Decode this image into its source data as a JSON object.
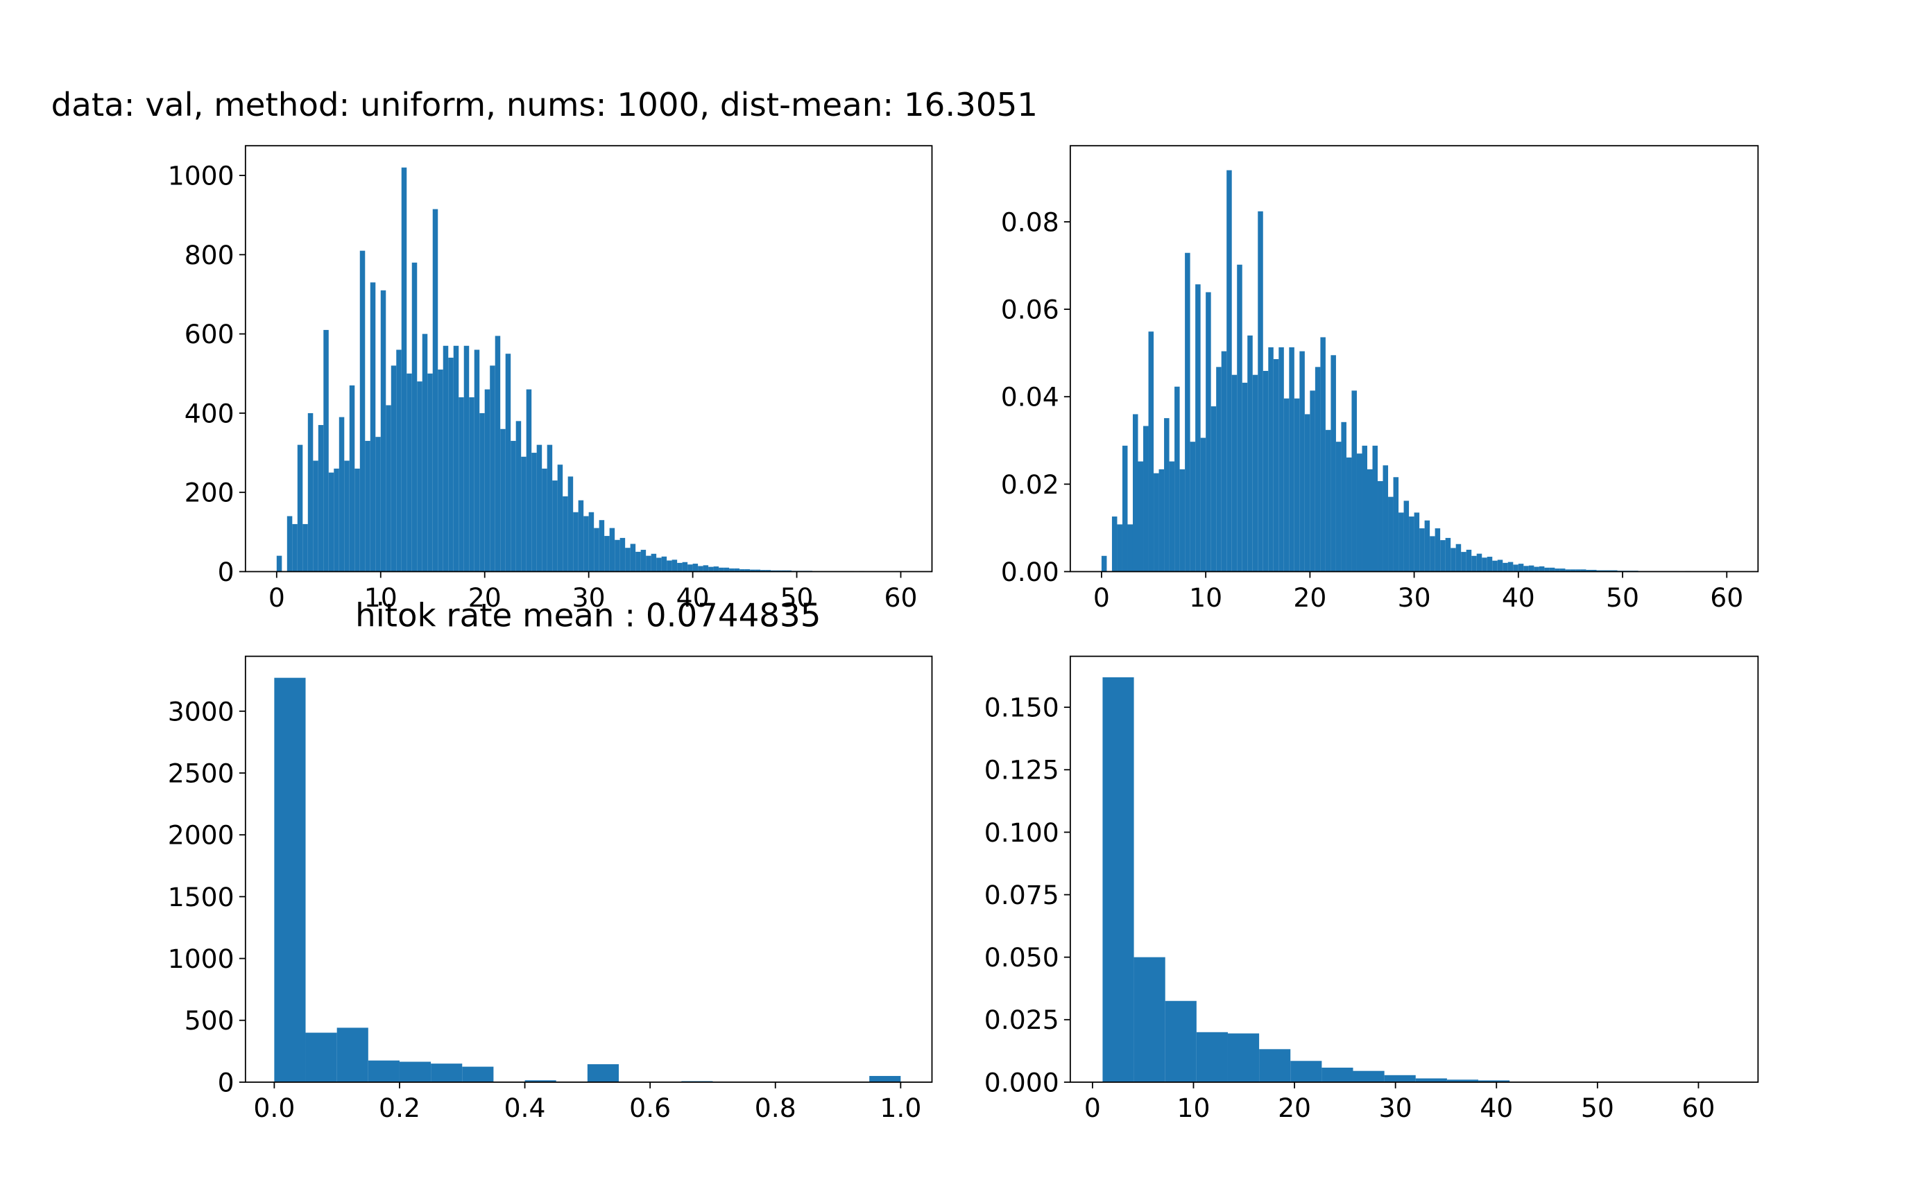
{
  "chart_data": [
    {
      "type": "histogram",
      "title": "data: val, method: uniform, nums: 1000, dist-mean: 16.3051",
      "color": "#1f77b4",
      "bins": [
        0,
        0.5,
        1,
        1.5,
        2,
        2.5,
        3,
        3.5,
        4,
        4.5,
        5,
        5.5,
        6,
        6.5,
        7,
        7.5,
        8,
        8.5,
        9,
        9.5,
        10,
        10.5,
        11,
        11.5,
        12,
        12.5,
        13,
        13.5,
        14,
        14.5,
        15,
        15.5,
        16,
        16.5,
        17,
        17.5,
        18,
        18.5,
        19,
        19.5,
        20,
        20.5,
        21,
        21.5,
        22,
        22.5,
        23,
        23.5,
        24,
        24.5,
        25,
        25.5,
        26,
        26.5,
        27,
        27.5,
        28,
        28.5,
        29,
        29.5,
        30,
        30.5,
        31,
        31.5,
        32,
        32.5,
        33,
        33.5,
        34,
        34.5,
        35,
        35.5,
        36,
        36.5,
        37,
        37.5,
        38,
        38.5,
        39,
        39.5,
        40,
        40.5,
        41,
        41.5,
        42,
        42.5,
        43,
        43.5,
        44,
        44.5,
        45,
        45.5,
        46,
        46.5,
        47,
        47.5,
        48,
        48.5,
        49,
        49.5,
        50,
        50.5,
        51,
        51.5,
        52,
        52.5,
        53,
        53.5,
        54,
        54.5,
        55,
        55.5,
        56,
        56.5,
        57,
        57.5,
        58,
        58.5,
        59,
        59.5,
        60
      ],
      "values": [
        40,
        0,
        140,
        120,
        320,
        120,
        400,
        280,
        370,
        610,
        250,
        260,
        390,
        280,
        470,
        260,
        810,
        330,
        730,
        340,
        710,
        420,
        520,
        560,
        1020,
        500,
        780,
        480,
        600,
        500,
        915,
        510,
        570,
        540,
        570,
        440,
        570,
        440,
        560,
        400,
        460,
        520,
        595,
        360,
        550,
        330,
        380,
        290,
        460,
        300,
        320,
        260,
        320,
        230,
        270,
        190,
        240,
        150,
        180,
        140,
        150,
        110,
        130,
        90,
        110,
        80,
        85,
        60,
        70,
        50,
        55,
        40,
        45,
        35,
        38,
        28,
        30,
        22,
        24,
        18,
        20,
        14,
        16,
        12,
        13,
        10,
        10,
        8,
        8,
        6,
        6,
        5,
        5,
        4,
        4,
        3,
        3,
        3,
        3,
        2,
        2,
        2,
        2,
        1,
        1,
        1,
        1,
        1,
        1,
        1,
        1,
        0,
        1,
        0,
        0,
        0,
        0,
        0,
        0,
        1
      ],
      "xlim": [
        -3.0,
        63.0
      ],
      "xticks": [
        0,
        10,
        20,
        30,
        40,
        50,
        60
      ],
      "ylim": [
        0,
        1075
      ],
      "yticks": [
        0,
        200,
        400,
        600,
        800,
        1000
      ]
    },
    {
      "type": "histogram",
      "color": "#1f77b4",
      "bins": [
        0,
        0.5,
        1,
        1.5,
        2,
        2.5,
        3,
        3.5,
        4,
        4.5,
        5,
        5.5,
        6,
        6.5,
        7,
        7.5,
        8,
        8.5,
        9,
        9.5,
        10,
        10.5,
        11,
        11.5,
        12,
        12.5,
        13,
        13.5,
        14,
        14.5,
        15,
        15.5,
        16,
        16.5,
        17,
        17.5,
        18,
        18.5,
        19,
        19.5,
        20,
        20.5,
        21,
        21.5,
        22,
        22.5,
        23,
        23.5,
        24,
        24.5,
        25,
        25.5,
        26,
        26.5,
        27,
        27.5,
        28,
        28.5,
        29,
        29.5,
        30,
        30.5,
        31,
        31.5,
        32,
        32.5,
        33,
        33.5,
        34,
        34.5,
        35,
        35.5,
        36,
        36.5,
        37,
        37.5,
        38,
        38.5,
        39,
        39.5,
        40,
        40.5,
        41,
        41.5,
        42,
        42.5,
        43,
        43.5,
        44,
        44.5,
        45,
        45.5,
        46,
        46.5,
        47,
        47.5,
        48,
        48.5,
        49,
        49.5,
        50,
        50.5,
        51,
        51.5,
        52,
        52.5,
        53,
        53.5,
        54,
        54.5,
        55,
        55.5,
        56,
        56.5,
        57,
        57.5,
        58,
        58.5,
        59,
        59.5,
        60
      ],
      "values": [
        0.0036,
        0,
        0.0126,
        0.0108,
        0.0288,
        0.0108,
        0.036,
        0.0252,
        0.0333,
        0.0549,
        0.0225,
        0.0234,
        0.0351,
        0.0252,
        0.0423,
        0.0234,
        0.0729,
        0.0297,
        0.0657,
        0.0306,
        0.0639,
        0.0378,
        0.0468,
        0.0504,
        0.0918,
        0.045,
        0.0702,
        0.0432,
        0.054,
        0.045,
        0.0824,
        0.0459,
        0.0513,
        0.0486,
        0.0513,
        0.0396,
        0.0513,
        0.0396,
        0.0504,
        0.036,
        0.0414,
        0.0468,
        0.0536,
        0.0324,
        0.0495,
        0.0297,
        0.0342,
        0.0261,
        0.0414,
        0.027,
        0.0288,
        0.0234,
        0.0288,
        0.0207,
        0.0243,
        0.0171,
        0.0216,
        0.0135,
        0.0162,
        0.0126,
        0.0135,
        0.0099,
        0.0117,
        0.0081,
        0.0099,
        0.0072,
        0.0077,
        0.0054,
        0.0063,
        0.0045,
        0.005,
        0.0036,
        0.0041,
        0.0032,
        0.0034,
        0.0025,
        0.0027,
        0.002,
        0.0022,
        0.0016,
        0.0018,
        0.0013,
        0.0014,
        0.0011,
        0.0012,
        0.0009,
        0.0009,
        0.0007,
        0.0007,
        0.0005,
        0.0005,
        0.0005,
        0.0005,
        0.0004,
        0.0004,
        0.0003,
        0.0003,
        0.0003,
        0.0003,
        0.0002,
        0.0002,
        0.0002,
        0.0002,
        0.0001,
        0.0001,
        0.0001,
        0.0001,
        0.0001,
        0.0001,
        0.0001,
        0.0001,
        0,
        0.0001,
        0,
        0,
        0,
        0,
        0,
        0,
        0.0001
      ],
      "xlim": [
        -3.0,
        63.0
      ],
      "xticks": [
        0,
        10,
        20,
        30,
        40,
        50,
        60
      ],
      "ylim": [
        0,
        0.0974
      ],
      "yticks": [
        {
          "value": 0,
          "label": "0.00"
        },
        0.02,
        0.04,
        0.06,
        0.08
      ]
    },
    {
      "type": "histogram",
      "title": "hitok rate mean : 0.0744835",
      "color": "#1f77b4",
      "bins": [
        0,
        0.05,
        0.1,
        0.15,
        0.2,
        0.25,
        0.3,
        0.35,
        0.4,
        0.45,
        0.5,
        0.55,
        0.6,
        0.65,
        0.7,
        0.75,
        0.8,
        0.85,
        0.9,
        0.95,
        1.0
      ],
      "values": [
        3270,
        400,
        440,
        175,
        165,
        150,
        125,
        0,
        15,
        0,
        145,
        0,
        0,
        8,
        0,
        0,
        0,
        0,
        0,
        50
      ],
      "xlim": [
        -0.046,
        1.05
      ],
      "xticks": [
        {
          "value": 0,
          "label": "0.0"
        },
        0.2,
        0.4,
        0.6,
        0.8,
        {
          "value": 1,
          "label": "1.0"
        }
      ],
      "ylim": [
        0,
        3444
      ],
      "yticks": [
        0,
        500,
        1000,
        1500,
        2000,
        2500,
        3000
      ]
    },
    {
      "type": "histogram",
      "color": "#1f77b4",
      "bins": [
        1,
        4.1,
        7.2,
        10.3,
        13.4,
        16.5,
        19.6,
        22.7,
        25.8,
        28.9,
        32,
        35.1,
        38.2,
        41.3,
        44.4,
        47.5,
        50.6,
        53.7,
        56.8,
        59.9,
        63
      ],
      "values": [
        0.162,
        0.05,
        0.0325,
        0.02,
        0.0195,
        0.0132,
        0.0085,
        0.0058,
        0.0045,
        0.0028,
        0.0015,
        0.001,
        0.0007,
        0.0002,
        0.0001,
        0,
        0,
        0,
        0,
        0.0001
      ],
      "xlim": [
        -2.2,
        65.9
      ],
      "xticks": [
        0,
        10,
        20,
        30,
        40,
        50,
        60
      ],
      "ylim": [
        0,
        0.1704
      ],
      "yticks": [
        {
          "value": 0,
          "label": "0.000"
        },
        0.025,
        {
          "value": 0.05,
          "label": "0.050"
        },
        0.075,
        {
          "value": 0.1,
          "label": "0.100"
        },
        0.125,
        {
          "value": 0.15,
          "label": "0.150"
        }
      ]
    }
  ]
}
